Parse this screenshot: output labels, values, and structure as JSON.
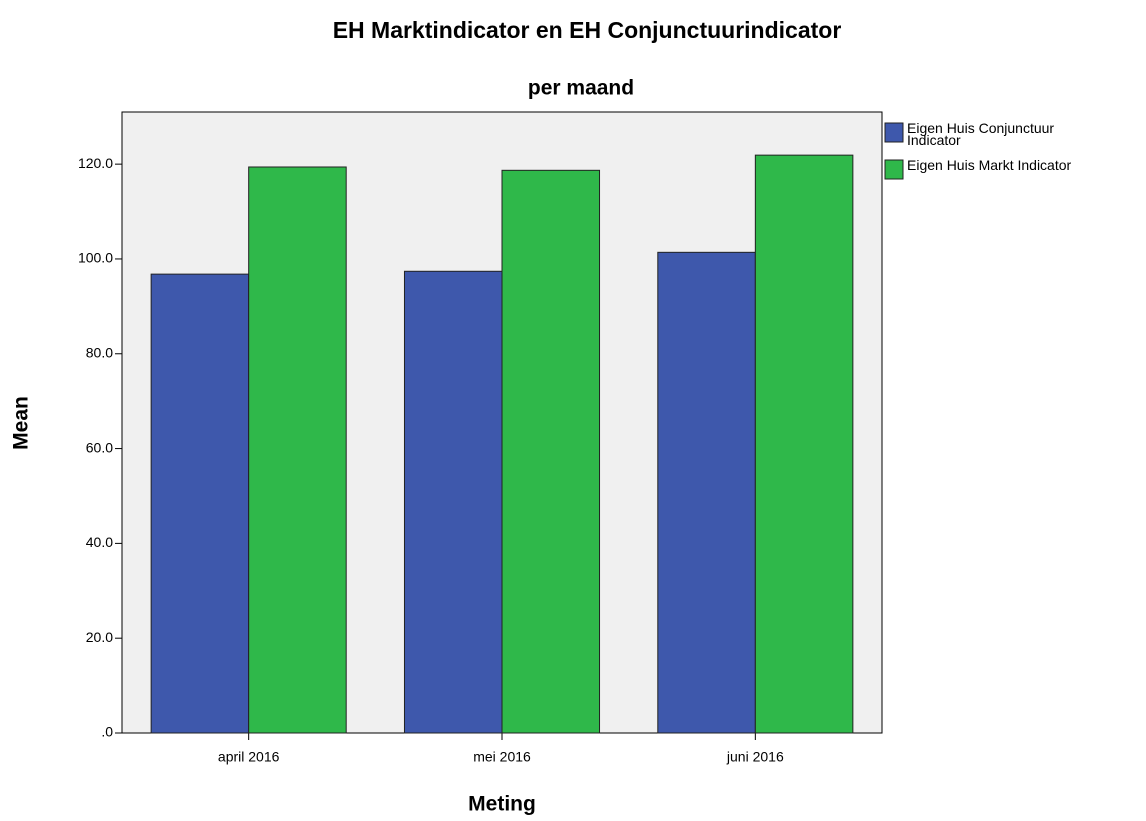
{
  "chart_data": {
    "type": "bar",
    "title": "EH Marktindicator en EH Conjunctuurindicator",
    "subtitle": "per maand",
    "x_label": "Meting",
    "y_label": "Mean",
    "categories": [
      "april 2016",
      "mei 2016",
      "juni 2016"
    ],
    "series": [
      {
        "name": "Eigen Huis Conjunctuur Indicator",
        "color": "#3e58ac",
        "values": [
          96.8,
          97.4,
          101.4
        ]
      },
      {
        "name": "Eigen Huis Markt Indicator",
        "color": "#2fb84a",
        "values": [
          119.4,
          118.7,
          121.9
        ]
      }
    ],
    "ylim": [
      0,
      131
    ],
    "yticks": [
      {
        "value": 0,
        "label": ".0"
      },
      {
        "value": 20,
        "label": "20.0"
      },
      {
        "value": 40,
        "label": "40.0"
      },
      {
        "value": 60,
        "label": "60.0"
      },
      {
        "value": 80,
        "label": "80.0"
      },
      {
        "value": 100,
        "label": "100.0"
      },
      {
        "value": 120,
        "label": "120.0"
      }
    ],
    "legend_position": "right"
  }
}
